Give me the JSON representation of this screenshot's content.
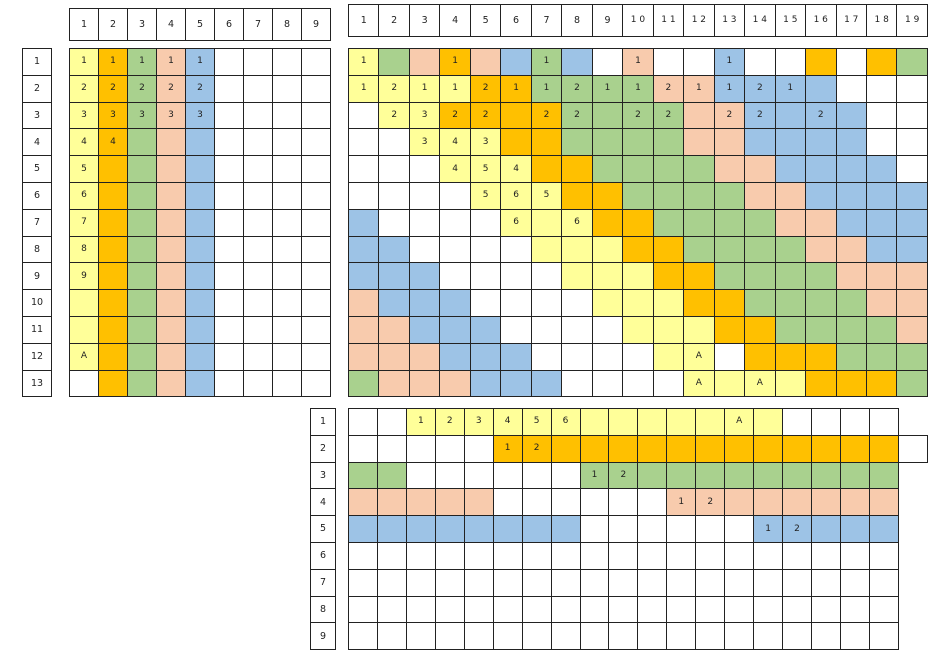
{
  "colors": {
    "y": "#ffff99",
    "o": "#ffc000",
    "g": "#a9d18e",
    "p": "#f8cbad",
    "b": "#9dc3e6",
    "w": "#ffffff"
  },
  "grid1": {
    "col_headers": [
      "1",
      "2",
      "3",
      "4",
      "5",
      "6",
      "7",
      "8",
      "9"
    ],
    "row_headers": [
      "1",
      "2",
      "3",
      "4",
      "5",
      "6",
      "7",
      "8",
      "9",
      "10",
      "11",
      "12",
      "13"
    ],
    "cells": [
      "yogpbwwww",
      "yogpbwwww",
      "yogpbwwww",
      "yogpbwwww",
      "yogpbwwww",
      "yogpbwwww",
      "yogpbwwww",
      "yogpbwwww",
      "yogpbwwww",
      "yogpbwwww",
      "yogpbwwww",
      "yogpbwwww",
      "wogpbwwww"
    ],
    "labels": {
      "0,0": "1",
      "0,1": "1",
      "0,2": "1",
      "0,3": "1",
      "0,4": "1",
      "1,0": "2",
      "1,1": "2",
      "1,2": "2",
      "1,3": "2",
      "1,4": "2",
      "2,0": "3",
      "2,1": "3",
      "2,2": "3",
      "2,3": "3",
      "2,4": "3",
      "3,0": "4",
      "3,1": "4",
      "4,0": "5",
      "5,0": "6",
      "6,0": "7",
      "7,0": "8",
      "8,0": "9",
      "11,0": "A"
    }
  },
  "grid2": {
    "col_headers": [
      "1",
      "2",
      "3",
      "4",
      "5",
      "6",
      "7",
      "8",
      "9",
      "1 0",
      "1 1",
      "1 2",
      "1 3",
      "1 4",
      "1 5",
      "1 6",
      "1 7",
      "1 8",
      "1 9"
    ],
    "cells": [
      "ygpopbgbwpwwbwwowog",
      "yyyyooggggppbbbbwww",
      "wyyooooggggppbbbbww",
      "wwyyyooggggppbbbbww",
      "wwwyyyooggggppbbbbw",
      "wwwwyyyooggggppbbbb",
      "bwwwwyyyooggggppbbb",
      "bbwwwwyyyooggggppbb",
      "bbbwwwwyyyooggggppp",
      "pbbbwwwwyyyooggggpp",
      "ppbbbwwwwyyyooggggp",
      "pppbbbwwwwyywoooggg",
      "gpppbbbwwwwyyyyooog"
    ],
    "labels": {
      "0,0": "1",
      "0,3": "1",
      "0,6": "1",
      "0,9": "1",
      "0,12": "1",
      "1,0": "1",
      "1,1": "2",
      "1,2": "1",
      "1,3": "1",
      "1,4": "2",
      "1,5": "1",
      "1,6": "1",
      "1,7": "2",
      "1,8": "1",
      "1,9": "1",
      "1,10": "2",
      "1,11": "1",
      "1,12": "1",
      "1,13": "2",
      "1,14": "1",
      "2,1": "2",
      "2,2": "3",
      "2,3": "2",
      "2,4": "2",
      "2,6": "2",
      "2,7": "2",
      "2,9": "2",
      "2,10": "2",
      "2,12": "2",
      "2,13": "2",
      "2,15": "2",
      "3,2": "3",
      "3,3": "4",
      "3,4": "3",
      "4,3": "4",
      "4,4": "5",
      "4,5": "4",
      "5,4": "5",
      "5,5": "6",
      "5,6": "5",
      "6,5": "6",
      "6,7": "6",
      "11,11": "A",
      "12,11": "A",
      "12,13": "A"
    }
  },
  "grid3": {
    "row_headers": [
      "1",
      "2",
      "3",
      "4",
      "5",
      "6",
      "7",
      "8",
      "9"
    ],
    "cells": [
      "wwyyyyyyyyyyyyywwww",
      "wwwwwoooooooooooooow",
      "ggwwwwwwggggggggggg",
      "pppppwwwwwwpppppppp",
      "bbbbbbbbwwwwwwbbbbb",
      "wwwwwwwwwwwwwwwwwww",
      "wwwwwwwwwwwwwwwwwww",
      "wwwwwwwwwwwwwwwwwww",
      "wwwwwwwwwwwwwwwwwww"
    ],
    "labels": {
      "0,2": "1",
      "0,3": "2",
      "0,4": "3",
      "0,5": "4",
      "0,6": "5",
      "0,7": "6",
      "0,13": "A",
      "1,5": "1",
      "1,6": "2",
      "2,8": "1",
      "2,9": "2",
      "3,11": "1",
      "3,12": "2",
      "4,14": "1",
      "4,15": "2"
    }
  }
}
